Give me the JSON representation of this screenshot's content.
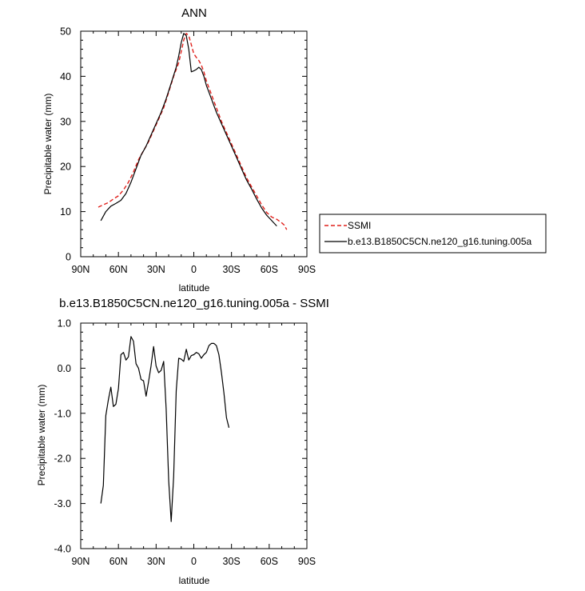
{
  "chart_data": [
    {
      "type": "line",
      "title": "ANN",
      "xlabel": "latitude",
      "ylabel": "Precipitable water (mm)",
      "xlim": [
        90,
        -90
      ],
      "ylim": [
        0,
        50
      ],
      "x_ticks": [
        {
          "value": 90,
          "label": "90N"
        },
        {
          "value": 60,
          "label": "60N"
        },
        {
          "value": 30,
          "label": "30N"
        },
        {
          "value": 0,
          "label": "0"
        },
        {
          "value": -30,
          "label": "30S"
        },
        {
          "value": -60,
          "label": "60S"
        },
        {
          "value": -90,
          "label": "90S"
        }
      ],
      "y_ticks": [
        {
          "value": 0,
          "label": "0"
        },
        {
          "value": 10,
          "label": "10"
        },
        {
          "value": 20,
          "label": "20"
        },
        {
          "value": 30,
          "label": "30"
        },
        {
          "value": 40,
          "label": "40"
        },
        {
          "value": 50,
          "label": "50"
        }
      ],
      "legend": {
        "placement": "right"
      },
      "series": [
        {
          "name": "SSMI",
          "color": "#e0201b",
          "dash": "dashed",
          "points": [
            [
              76,
              11.0
            ],
            [
              72,
              11.5
            ],
            [
              68,
              12.0
            ],
            [
              64,
              12.8
            ],
            [
              60,
              13.5
            ],
            [
              56,
              14.8
            ],
            [
              52,
              16.5
            ],
            [
              48,
              18.8
            ],
            [
              44,
              21.5
            ],
            [
              40,
              23.5
            ],
            [
              36,
              25.5
            ],
            [
              32,
              28.0
            ],
            [
              28,
              30.5
            ],
            [
              24,
              33.0
            ],
            [
              20,
              36.5
            ],
            [
              16,
              40.0
            ],
            [
              12,
              43.0
            ],
            [
              10,
              45.5
            ],
            [
              8,
              48.0
            ],
            [
              6,
              49.5
            ],
            [
              4,
              49.0
            ],
            [
              2,
              47.0
            ],
            [
              0,
              45.0
            ],
            [
              -2,
              44.2
            ],
            [
              -4,
              43.5
            ],
            [
              -6,
              42.5
            ],
            [
              -8,
              41.0
            ],
            [
              -10,
              39.0
            ],
            [
              -14,
              36.0
            ],
            [
              -18,
              33.0
            ],
            [
              -22,
              30.0
            ],
            [
              -26,
              27.5
            ],
            [
              -30,
              25.0
            ],
            [
              -34,
              22.5
            ],
            [
              -38,
              20.0
            ],
            [
              -42,
              17.5
            ],
            [
              -46,
              15.5
            ],
            [
              -50,
              13.5
            ],
            [
              -54,
              11.5
            ],
            [
              -58,
              9.8
            ],
            [
              -62,
              8.8
            ],
            [
              -66,
              8.3
            ],
            [
              -70,
              7.5
            ],
            [
              -72,
              7.0
            ],
            [
              -74,
              6.0
            ]
          ]
        },
        {
          "name": "b.e13.B1850C5CN.ne120_g16.tuning.005a",
          "color": "#000000",
          "dash": "solid",
          "points": [
            [
              74,
              8.0
            ],
            [
              70,
              10.0
            ],
            [
              66,
              11.2
            ],
            [
              62,
              11.8
            ],
            [
              58,
              12.5
            ],
            [
              54,
              14.0
            ],
            [
              50,
              16.5
            ],
            [
              46,
              19.5
            ],
            [
              42,
              22.5
            ],
            [
              38,
              24.5
            ],
            [
              34,
              27.0
            ],
            [
              30,
              29.5
            ],
            [
              26,
              32.0
            ],
            [
              22,
              35.0
            ],
            [
              18,
              38.5
            ],
            [
              14,
              42.0
            ],
            [
              12,
              44.5
            ],
            [
              10,
              47.5
            ],
            [
              8,
              49.5
            ],
            [
              6,
              49.0
            ],
            [
              4,
              46.0
            ],
            [
              2,
              41.0
            ],
            [
              0,
              41.2
            ],
            [
              -2,
              41.5
            ],
            [
              -4,
              42.0
            ],
            [
              -6,
              41.5
            ],
            [
              -8,
              40.0
            ],
            [
              -10,
              38.0
            ],
            [
              -14,
              35.0
            ],
            [
              -18,
              32.0
            ],
            [
              -22,
              29.5
            ],
            [
              -26,
              27.0
            ],
            [
              -30,
              24.5
            ],
            [
              -34,
              22.0
            ],
            [
              -38,
              19.5
            ],
            [
              -42,
              17.0
            ],
            [
              -46,
              15.0
            ],
            [
              -50,
              12.8
            ],
            [
              -54,
              10.8
            ],
            [
              -58,
              9.2
            ],
            [
              -62,
              8.0
            ],
            [
              -66,
              6.8
            ]
          ]
        }
      ]
    },
    {
      "type": "line",
      "title": "b.e13.B1850C5CN.ne120_g16.tuning.005a - SSMI",
      "xlabel": "latitude",
      "ylabel": "Precipitable water (mm)",
      "xlim": [
        90,
        -90
      ],
      "ylim": [
        -4,
        1
      ],
      "x_ticks": [
        {
          "value": 90,
          "label": "90N"
        },
        {
          "value": 60,
          "label": "60N"
        },
        {
          "value": 30,
          "label": "30N"
        },
        {
          "value": 0,
          "label": "0"
        },
        {
          "value": -30,
          "label": "30S"
        },
        {
          "value": -60,
          "label": "60S"
        },
        {
          "value": -90,
          "label": "90S"
        }
      ],
      "y_ticks": [
        {
          "value": -4,
          "label": "-4.0"
        },
        {
          "value": -3,
          "label": "-3.0"
        },
        {
          "value": -2,
          "label": "-2.0"
        },
        {
          "value": -1,
          "label": "-1.0"
        },
        {
          "value": 0,
          "label": "0.0"
        },
        {
          "value": 1,
          "label": "1.0"
        }
      ],
      "series": [
        {
          "name": "",
          "color": "#000000",
          "dash": "solid",
          "points": [
            [
              74,
              -3.0
            ],
            [
              72,
              -2.6
            ],
            [
              70,
              -1.05
            ],
            [
              68,
              -0.7
            ],
            [
              66,
              -0.42
            ],
            [
              64,
              -0.85
            ],
            [
              62,
              -0.8
            ],
            [
              60,
              -0.45
            ],
            [
              58,
              0.3
            ],
            [
              56,
              0.35
            ],
            [
              54,
              0.18
            ],
            [
              52,
              0.25
            ],
            [
              50,
              0.7
            ],
            [
              48,
              0.6
            ],
            [
              46,
              0.1
            ],
            [
              44,
              0.0
            ],
            [
              42,
              -0.25
            ],
            [
              40,
              -0.28
            ],
            [
              38,
              -0.62
            ],
            [
              36,
              -0.3
            ],
            [
              34,
              0.05
            ],
            [
              32,
              0.48
            ],
            [
              30,
              0.05
            ],
            [
              28,
              -0.1
            ],
            [
              26,
              -0.05
            ],
            [
              24,
              0.15
            ],
            [
              22,
              -0.9
            ],
            [
              20,
              -2.5
            ],
            [
              18,
              -3.4
            ],
            [
              16,
              -2.4
            ],
            [
              14,
              -0.5
            ],
            [
              12,
              0.22
            ],
            [
              10,
              0.2
            ],
            [
              8,
              0.15
            ],
            [
              6,
              0.42
            ],
            [
              4,
              0.18
            ],
            [
              2,
              0.28
            ],
            [
              0,
              0.3
            ],
            [
              -2,
              0.35
            ],
            [
              -4,
              0.32
            ],
            [
              -6,
              0.22
            ],
            [
              -8,
              0.3
            ],
            [
              -10,
              0.35
            ],
            [
              -12,
              0.5
            ],
            [
              -14,
              0.55
            ],
            [
              -16,
              0.55
            ],
            [
              -18,
              0.5
            ],
            [
              -20,
              0.3
            ],
            [
              -22,
              -0.1
            ],
            [
              -24,
              -0.55
            ],
            [
              -26,
              -1.1
            ],
            [
              -28,
              -1.32
            ]
          ]
        }
      ]
    }
  ]
}
